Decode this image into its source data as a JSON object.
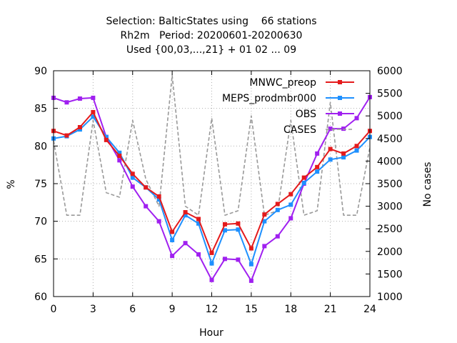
{
  "chart_data": {
    "type": "line",
    "title_lines": [
      "Selection: BalticStates using    66 stations",
      "Rh2m   Period: 20200601-20200630",
      "Used {00,03,...,21} + 01 02 ... 09"
    ],
    "xlabel": "Hour",
    "ylabel": "%",
    "y2label": "No cases",
    "xlim": [
      0,
      24
    ],
    "ylim": [
      60,
      90
    ],
    "y2lim": [
      1000,
      6000
    ],
    "xticks": [
      0,
      3,
      6,
      9,
      12,
      15,
      18,
      21,
      24
    ],
    "yticks": [
      60,
      65,
      70,
      75,
      80,
      85,
      90
    ],
    "y2ticks": [
      1000,
      1500,
      2000,
      2500,
      3000,
      3500,
      4000,
      4500,
      5000,
      5500,
      6000
    ],
    "grid": true,
    "legend_position": "top-right",
    "x": [
      0,
      1,
      2,
      3,
      4,
      5,
      6,
      7,
      8,
      9,
      10,
      11,
      12,
      13,
      14,
      15,
      16,
      17,
      18,
      19,
      20,
      21,
      22,
      23,
      24
    ],
    "series": [
      {
        "name": "MNWC_preop",
        "color": "#e41a1c",
        "marker": "square",
        "axis": "left",
        "values": [
          82.0,
          81.4,
          82.5,
          84.5,
          80.8,
          78.7,
          76.3,
          74.5,
          73.3,
          68.6,
          71.2,
          70.3,
          65.8,
          69.6,
          69.7,
          66.4,
          70.9,
          72.3,
          73.6,
          75.8,
          77.2,
          79.6,
          79.0,
          80.0,
          82.0
        ]
      },
      {
        "name": "MEPS_prodmbr000",
        "color": "#1e90ff",
        "marker": "square",
        "axis": "left",
        "values": [
          81.0,
          81.3,
          82.2,
          83.9,
          81.2,
          79.1,
          75.8,
          74.5,
          72.9,
          67.5,
          70.8,
          69.7,
          64.4,
          68.8,
          68.9,
          64.3,
          70.0,
          71.5,
          72.2,
          75.1,
          76.6,
          78.2,
          78.5,
          79.4,
          81.2
        ]
      },
      {
        "name": "OBS",
        "color": "#a020f0",
        "marker": "square",
        "axis": "left",
        "values": [
          86.4,
          85.8,
          86.3,
          86.4,
          81.2,
          78.1,
          74.6,
          72.0,
          70.0,
          65.4,
          67.1,
          65.6,
          62.2,
          65.0,
          64.9,
          62.1,
          66.7,
          68.0,
          70.4,
          75.0,
          79.0,
          82.3,
          82.3,
          83.7,
          86.5
        ]
      },
      {
        "name": "CASES",
        "color": "#999999",
        "style": "dashed",
        "axis": "right",
        "values": [
          4450,
          2800,
          2800,
          4900,
          3300,
          3200,
          4900,
          3600,
          3000,
          5900,
          3000,
          2800,
          4950,
          2800,
          2900,
          5000,
          2800,
          2900,
          4900,
          2800,
          2900,
          5300,
          2800,
          2800,
          4300
        ]
      }
    ]
  }
}
